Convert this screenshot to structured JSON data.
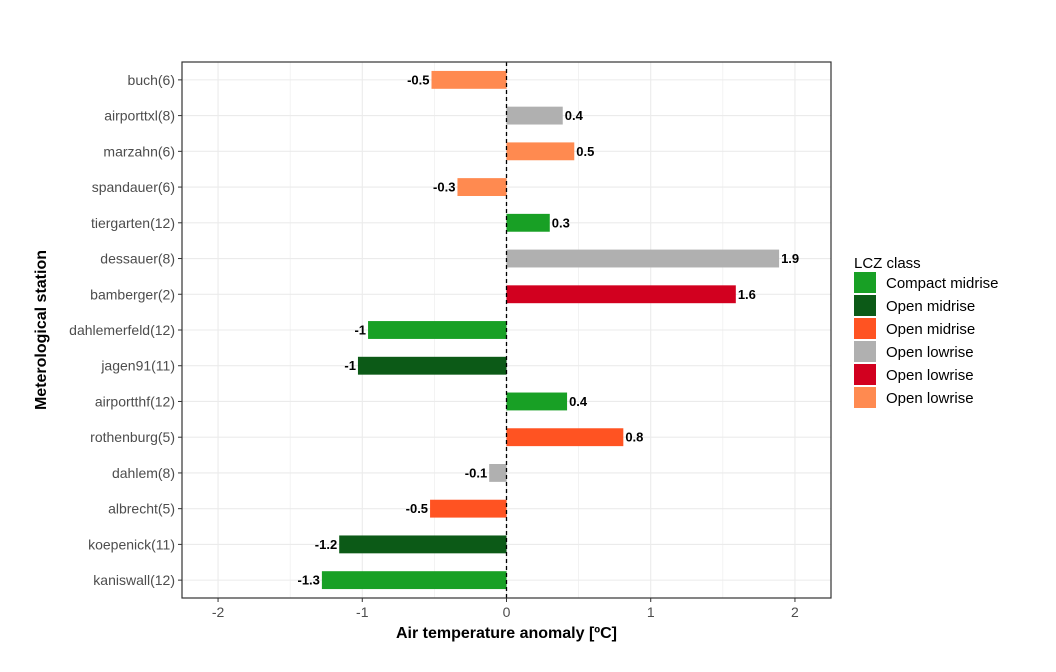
{
  "chart_data": {
    "type": "bar",
    "orientation": "horizontal",
    "xlabel": "Air temperature anomaly [ºC]",
    "ylabel": "Meterological station",
    "xlim": [
      -2.25,
      2.25
    ],
    "x_ticks": [
      -2,
      -1,
      0,
      1,
      2
    ],
    "grid": true,
    "reference_line": {
      "x": 0,
      "style": "dashed"
    },
    "legend": {
      "title": "LCZ class",
      "placement": "right",
      "entries": [
        {
          "key": "cm",
          "label": "Compact midrise",
          "color": "#18a025"
        },
        {
          "key": "om_dark",
          "label": "Open midrise",
          "color": "#0c5a17"
        },
        {
          "key": "om_orange",
          "label": "Open midrise",
          "color": "#ff5322"
        },
        {
          "key": "ol_grey",
          "label": "Open lowrise",
          "color": "#b0b0b0"
        },
        {
          "key": "ol_red",
          "label": "Open lowrise",
          "color": "#d2001f"
        },
        {
          "key": "ol_orange",
          "label": "Open lowrise",
          "color": "#ff8a50"
        }
      ]
    },
    "bars": [
      {
        "station": "buch(6)",
        "value": -0.52,
        "label": "-0.5",
        "class": "ol_orange"
      },
      {
        "station": "airporttxl(8)",
        "value": 0.39,
        "label": "0.4",
        "class": "ol_grey"
      },
      {
        "station": "marzahn(6)",
        "value": 0.47,
        "label": "0.5",
        "class": "ol_orange"
      },
      {
        "station": "spandauer(6)",
        "value": -0.34,
        "label": "-0.3",
        "class": "ol_orange"
      },
      {
        "station": "tiergarten(12)",
        "value": 0.3,
        "label": "0.3",
        "class": "cm"
      },
      {
        "station": "dessauer(8)",
        "value": 1.89,
        "label": "1.9",
        "class": "ol_grey"
      },
      {
        "station": "bamberger(2)",
        "value": 1.59,
        "label": "1.6",
        "class": "ol_red"
      },
      {
        "station": "dahlemerfeld(12)",
        "value": -0.96,
        "label": "-1",
        "class": "cm"
      },
      {
        "station": "jagen91(11)",
        "value": -1.03,
        "label": "-1",
        "class": "om_dark"
      },
      {
        "station": "airportthf(12)",
        "value": 0.42,
        "label": "0.4",
        "class": "cm"
      },
      {
        "station": "rothenburg(5)",
        "value": 0.81,
        "label": "0.8",
        "class": "om_orange"
      },
      {
        "station": "dahlem(8)",
        "value": -0.12,
        "label": "-0.1",
        "class": "ol_grey"
      },
      {
        "station": "albrecht(5)",
        "value": -0.53,
        "label": "-0.5",
        "class": "om_orange"
      },
      {
        "station": "koepenick(11)",
        "value": -1.16,
        "label": "-1.2",
        "class": "om_dark"
      },
      {
        "station": "kaniswall(12)",
        "value": -1.28,
        "label": "-1.3",
        "class": "cm"
      }
    ]
  }
}
